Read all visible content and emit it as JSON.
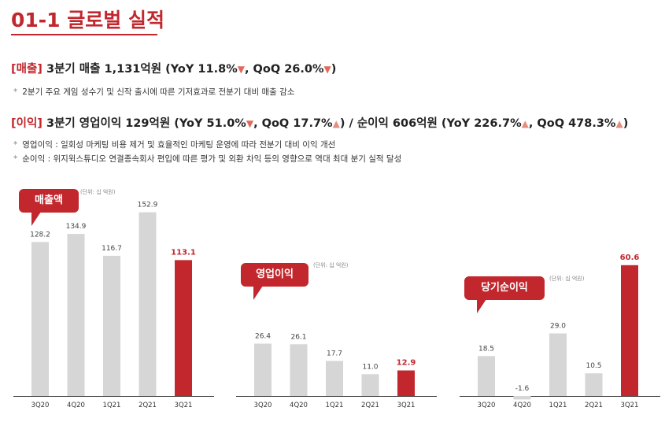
{
  "page": {
    "title": "01-1  글로벌 실적",
    "revenue_line": {
      "tag": "[매출]",
      "text1": " 3분기 매출 1,131억원 (YoY 11.8%",
      "arrow1": "▼",
      "text2": ", QoQ 26.0%",
      "arrow2": "▼",
      "text3": ")"
    },
    "revenue_note": "2분기 주요 게임 성수기 및 신작 출시에 따른 기저효과로 전분기 대비 매출 감소",
    "profit_line": {
      "tag": "[이익]",
      "text1": " 3분기 영업이익 129억원 (YoY 51.0%",
      "arrow1": "▼",
      "text2": ", QoQ 17.7%",
      "arrow2": "▲",
      "text3": ") / 순이익 606억원 (YoY 226.7%",
      "arrow3": "▲",
      "text4": ", QoQ 478.3%",
      "arrow4": "▲",
      "text5": ")"
    },
    "profit_notes": [
      "영업이익 : 일회성 마케팅 비용 제거 및 효율적인 마케팅 운영에 따라 전분기 대비 이익 개선",
      "순이익 : 위지윅스튜디오 연결종속회사 편입에 따른 평가 및 외환 차익 등의 영향으로 역대 최대 분기 실적 달성"
    ],
    "bullet": "*",
    "colors": {
      "accent": "#c1272d",
      "bar": "#d6d6d6",
      "highlight_bar": "#c1272d"
    }
  },
  "chart_data": [
    {
      "type": "bar",
      "title": "매출액",
      "unit": "(단위: 십 억원)",
      "categories": [
        "3Q20",
        "4Q20",
        "1Q21",
        "2Q21",
        "3Q21"
      ],
      "values": [
        128.2,
        134.9,
        116.7,
        152.9,
        113.1
      ],
      "labels": [
        "128.2",
        "134.9",
        "116.7",
        "152.9",
        "113.1"
      ],
      "highlight_index": 4,
      "ylim": [
        0,
        190
      ]
    },
    {
      "type": "bar",
      "title": "영업이익",
      "unit": "(단위: 십 억원)",
      "categories": [
        "3Q20",
        "4Q20",
        "1Q21",
        "2Q21",
        "3Q21"
      ],
      "values": [
        26.4,
        26.1,
        17.7,
        11.0,
        12.9
      ],
      "labels": [
        "26.4",
        "26.1",
        "17.7",
        "11.0",
        "12.9"
      ],
      "highlight_index": 4,
      "ylim": [
        0,
        54
      ]
    },
    {
      "type": "bar",
      "title": "당기순이익",
      "unit": "(단위: 십 억원)",
      "categories": [
        "3Q20",
        "4Q20",
        "1Q21",
        "2Q21",
        "3Q21"
      ],
      "values": [
        18.5,
        -1.6,
        29.0,
        10.5,
        60.6
      ],
      "labels": [
        "18.5",
        "-1.6",
        "29.0",
        "10.5",
        "60.6"
      ],
      "highlight_index": 4,
      "ylim": [
        0,
        66
      ]
    }
  ]
}
